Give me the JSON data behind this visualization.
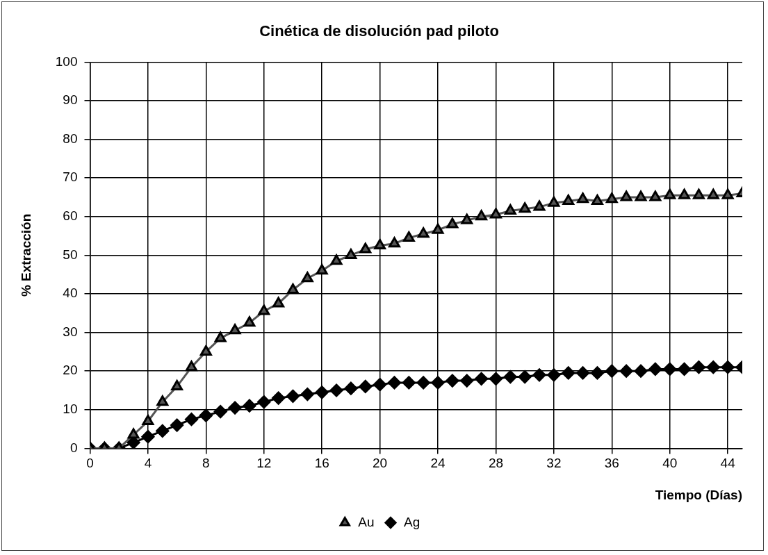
{
  "chart_data": {
    "type": "line",
    "title": "Cinética de disolución pad piloto",
    "xlabel": "Tiempo (Días)",
    "ylabel": "% Extracción",
    "x": [
      0,
      1,
      2,
      3,
      4,
      5,
      6,
      7,
      8,
      9,
      10,
      11,
      12,
      13,
      14,
      15,
      16,
      17,
      18,
      19,
      20,
      21,
      22,
      23,
      24,
      25,
      26,
      27,
      28,
      29,
      30,
      31,
      32,
      33,
      34,
      35,
      36,
      37,
      38,
      39,
      40,
      41,
      42,
      43,
      44,
      45
    ],
    "series": [
      {
        "name": "Au",
        "color": "#555555",
        "marker": "triangle",
        "values": [
          0,
          0,
          0,
          3.5,
          7,
          12,
          16,
          21,
          25,
          28.5,
          30.5,
          32.5,
          35.5,
          37.5,
          41,
          44,
          46,
          48.5,
          50,
          51.5,
          52.5,
          53,
          54.5,
          55.5,
          56.5,
          58,
          59,
          60,
          60.5,
          61.5,
          62,
          62.5,
          63.5,
          64,
          64.5,
          64,
          64.5,
          65,
          65,
          65,
          65.5,
          65.5,
          65.5,
          65.5,
          65.5,
          66
        ]
      },
      {
        "name": "Ag",
        "color": "#000000",
        "marker": "diamond",
        "values": [
          0,
          0,
          0,
          1.5,
          3,
          4.5,
          6,
          7.5,
          8.5,
          9.5,
          10.5,
          11,
          12,
          13,
          13.5,
          14,
          14.5,
          15,
          15.5,
          16,
          16.5,
          17,
          17,
          17,
          17,
          17.5,
          17.5,
          18,
          18,
          18.5,
          18.5,
          19,
          19,
          19.5,
          19.5,
          19.5,
          20,
          20,
          20,
          20.5,
          20.5,
          20.5,
          21,
          21,
          21,
          21
        ]
      }
    ],
    "xlim": [
      0,
      45
    ],
    "xticks": [
      0,
      4,
      8,
      12,
      16,
      20,
      24,
      28,
      32,
      36,
      40,
      44
    ],
    "ylim": [
      0,
      100
    ],
    "yticks": [
      0,
      10,
      20,
      30,
      40,
      50,
      60,
      70,
      80,
      90,
      100
    ],
    "grid": true,
    "legend": "bottom",
    "line_style": "solid"
  }
}
